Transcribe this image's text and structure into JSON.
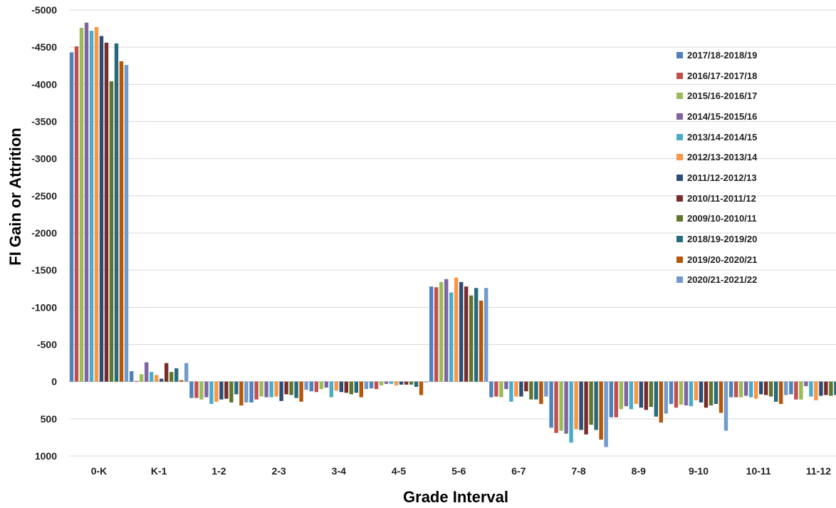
{
  "chart_data": {
    "type": "bar",
    "title": "",
    "xlabel": "Grade Interval",
    "ylabel": "FI Gain or Attrition",
    "ylim": [
      1000,
      -5000
    ],
    "y_axis_reversed": true,
    "yticks": [
      -5000,
      -4500,
      -4000,
      -3500,
      -3000,
      -2500,
      -2000,
      -1500,
      -1000,
      -500,
      0,
      500,
      1000
    ],
    "ytick_labels": [
      "-5000",
      "-4500",
      "-4000",
      "-3500",
      "-3000",
      "-2500",
      "-2000",
      "-1500",
      "-1000",
      "-500",
      "0",
      "500",
      "1000"
    ],
    "grid": true,
    "legend_position": "right",
    "categories": [
      "0-K",
      "K-1",
      "1-2",
      "2-3",
      "3-4",
      "4-5",
      "5-6",
      "6-7",
      "7-8",
      "8-9",
      "9-10",
      "10-11",
      "11-12"
    ],
    "series": [
      {
        "name": "2017/18-2018/19",
        "color": "#4f81bd",
        "values": [
          -4430,
          -140,
          220,
          280,
          130,
          90,
          -1280,
          210,
          620,
          480,
          300,
          210,
          170
        ]
      },
      {
        "name": "2016/17-2017/18",
        "color": "#c0504d",
        "values": [
          -4510,
          -10,
          220,
          240,
          140,
          100,
          -1270,
          200,
          690,
          480,
          350,
          210,
          240
        ]
      },
      {
        "name": "2015/16-2016/17",
        "color": "#9bbb59",
        "values": [
          -4760,
          -100,
          240,
          200,
          100,
          50,
          -1340,
          210,
          660,
          370,
          310,
          210,
          240
        ]
      },
      {
        "name": "2014/15-2015/16",
        "color": "#8064a2",
        "values": [
          -4830,
          -260,
          210,
          210,
          80,
          30,
          -1380,
          100,
          700,
          330,
          320,
          190,
          60
        ]
      },
      {
        "name": "2013/14-2014/15",
        "color": "#4bacc6",
        "values": [
          -4720,
          -130,
          300,
          210,
          210,
          30,
          -1200,
          270,
          820,
          370,
          330,
          210,
          200
        ]
      },
      {
        "name": "2012/13-2013/14",
        "color": "#f79646",
        "values": [
          -4770,
          -90,
          270,
          200,
          120,
          50,
          -1400,
          200,
          640,
          300,
          250,
          230,
          250
        ]
      },
      {
        "name": "2011/12-2012/13",
        "color": "#2c4d75",
        "values": [
          -4650,
          -40,
          240,
          260,
          140,
          40,
          -1340,
          200,
          650,
          350,
          280,
          170,
          190
        ]
      },
      {
        "name": "2010/11-2011/12",
        "color": "#772c2a",
        "values": [
          -4560,
          -250,
          230,
          170,
          150,
          40,
          -1280,
          130,
          710,
          380,
          350,
          180,
          180
        ]
      },
      {
        "name": "2009/10-2010/11",
        "color": "#5f7530",
        "values": [
          -4040,
          -130,
          280,
          180,
          170,
          40,
          -1160,
          240,
          580,
          340,
          320,
          200,
          190
        ]
      },
      {
        "name": "2018/19-2019/20",
        "color": "#276a7c",
        "values": [
          -4550,
          -180,
          170,
          220,
          150,
          70,
          -1260,
          240,
          650,
          470,
          300,
          270,
          180
        ]
      },
      {
        "name": "2019/20-2020/21",
        "color": "#b65708",
        "values": [
          -4310,
          -20,
          320,
          270,
          210,
          180,
          -1090,
          300,
          780,
          550,
          420,
          300,
          160
        ]
      },
      {
        "name": "2020/21-2021/22",
        "color": "#729aca",
        "values": [
          -4260,
          -250,
          280,
          110,
          100,
          10,
          -1260,
          200,
          880,
          430,
          660,
          180,
          170
        ]
      }
    ]
  }
}
